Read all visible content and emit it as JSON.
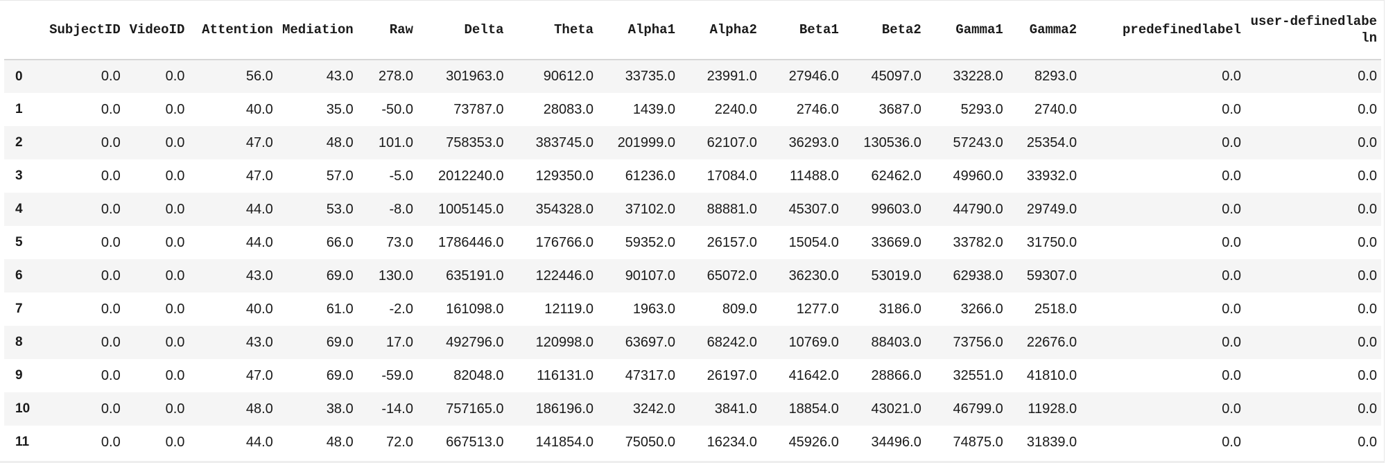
{
  "table": {
    "columns": [
      "",
      "SubjectID",
      "VideoID",
      "Attention",
      "Mediation",
      "Raw",
      "Delta",
      "Theta",
      "Alpha1",
      "Alpha2",
      "Beta1",
      "Beta2",
      "Gamma1",
      "Gamma2",
      "predefinedlabel",
      "user-definedlabeln"
    ],
    "rows": [
      [
        "0",
        "0.0",
        "0.0",
        "56.0",
        "43.0",
        "278.0",
        "301963.0",
        "90612.0",
        "33735.0",
        "23991.0",
        "27946.0",
        "45097.0",
        "33228.0",
        "8293.0",
        "0.0",
        "0.0"
      ],
      [
        "1",
        "0.0",
        "0.0",
        "40.0",
        "35.0",
        "-50.0",
        "73787.0",
        "28083.0",
        "1439.0",
        "2240.0",
        "2746.0",
        "3687.0",
        "5293.0",
        "2740.0",
        "0.0",
        "0.0"
      ],
      [
        "2",
        "0.0",
        "0.0",
        "47.0",
        "48.0",
        "101.0",
        "758353.0",
        "383745.0",
        "201999.0",
        "62107.0",
        "36293.0",
        "130536.0",
        "57243.0",
        "25354.0",
        "0.0",
        "0.0"
      ],
      [
        "3",
        "0.0",
        "0.0",
        "47.0",
        "57.0",
        "-5.0",
        "2012240.0",
        "129350.0",
        "61236.0",
        "17084.0",
        "11488.0",
        "62462.0",
        "49960.0",
        "33932.0",
        "0.0",
        "0.0"
      ],
      [
        "4",
        "0.0",
        "0.0",
        "44.0",
        "53.0",
        "-8.0",
        "1005145.0",
        "354328.0",
        "37102.0",
        "88881.0",
        "45307.0",
        "99603.0",
        "44790.0",
        "29749.0",
        "0.0",
        "0.0"
      ],
      [
        "5",
        "0.0",
        "0.0",
        "44.0",
        "66.0",
        "73.0",
        "1786446.0",
        "176766.0",
        "59352.0",
        "26157.0",
        "15054.0",
        "33669.0",
        "33782.0",
        "31750.0",
        "0.0",
        "0.0"
      ],
      [
        "6",
        "0.0",
        "0.0",
        "43.0",
        "69.0",
        "130.0",
        "635191.0",
        "122446.0",
        "90107.0",
        "65072.0",
        "36230.0",
        "53019.0",
        "62938.0",
        "59307.0",
        "0.0",
        "0.0"
      ],
      [
        "7",
        "0.0",
        "0.0",
        "40.0",
        "61.0",
        "-2.0",
        "161098.0",
        "12119.0",
        "1963.0",
        "809.0",
        "1277.0",
        "3186.0",
        "3266.0",
        "2518.0",
        "0.0",
        "0.0"
      ],
      [
        "8",
        "0.0",
        "0.0",
        "43.0",
        "69.0",
        "17.0",
        "492796.0",
        "120998.0",
        "63697.0",
        "68242.0",
        "10769.0",
        "88403.0",
        "73756.0",
        "22676.0",
        "0.0",
        "0.0"
      ],
      [
        "9",
        "0.0",
        "0.0",
        "47.0",
        "69.0",
        "-59.0",
        "82048.0",
        "116131.0",
        "47317.0",
        "26197.0",
        "41642.0",
        "28866.0",
        "32551.0",
        "41810.0",
        "0.0",
        "0.0"
      ],
      [
        "10",
        "0.0",
        "0.0",
        "48.0",
        "38.0",
        "-14.0",
        "757165.0",
        "186196.0",
        "3242.0",
        "3841.0",
        "18854.0",
        "43021.0",
        "46799.0",
        "11928.0",
        "0.0",
        "0.0"
      ],
      [
        "11",
        "0.0",
        "0.0",
        "44.0",
        "48.0",
        "72.0",
        "667513.0",
        "141854.0",
        "75050.0",
        "16234.0",
        "45926.0",
        "34496.0",
        "74875.0",
        "31839.0",
        "0.0",
        "0.0"
      ]
    ]
  },
  "colors": {
    "row_stripe": "#f5f5f5",
    "header_rule": "#d6d6d6",
    "text": "#1a1a1a"
  }
}
